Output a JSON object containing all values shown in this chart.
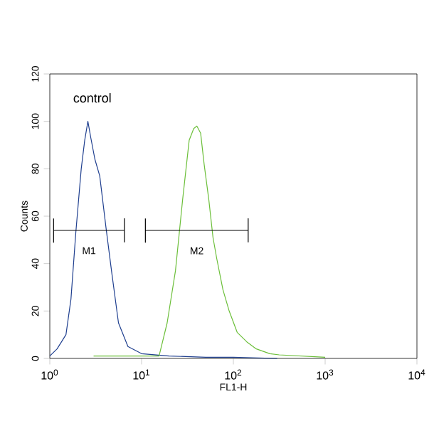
{
  "chart_data": {
    "type": "line",
    "xlabel": "FL1-H",
    "ylabel": "Counts",
    "log": "x",
    "xlim": [
      1,
      10000
    ],
    "ylim": [
      0,
      120
    ],
    "xticks": [
      {
        "value": 1,
        "label": "10$^{0}$"
      },
      {
        "value": 10,
        "label": "10$^{1}$"
      },
      {
        "value": 100,
        "label": "10$^{2}$"
      },
      {
        "value": 1000,
        "label": "10$^{3}$"
      },
      {
        "value": 10000,
        "label": "10$^{4}$"
      }
    ],
    "yticks": [
      0,
      20,
      40,
      60,
      80,
      100,
      120
    ],
    "grid": false,
    "marker": "none",
    "line_style": "solid",
    "series": [
      {
        "color": "#1f3f8f",
        "x": [
          1,
          1.2,
          1.5,
          1.7,
          1.92,
          2.2,
          2.4,
          2.6,
          2.8,
          3.1,
          3.5,
          4.1,
          4.7,
          5.6,
          7.1,
          10,
          20,
          50,
          100,
          300
        ],
        "values": [
          1,
          4,
          10,
          25,
          53,
          80,
          92,
          100,
          93,
          84,
          77,
          55,
          37,
          15,
          5,
          2,
          1,
          0.5,
          0.5,
          0
        ]
      },
      {
        "color": "#6cbf3a",
        "x": [
          3,
          8,
          15.5,
          19,
          23.4,
          28,
          33,
          37,
          40,
          44,
          48,
          54,
          60,
          66,
          77,
          90,
          110,
          140,
          178,
          250,
          316,
          1000
        ],
        "values": [
          1,
          1,
          1,
          15,
          37,
          67,
          92,
          97,
          98,
          95,
          82,
          67,
          51,
          42,
          29,
          20,
          11,
          7,
          4,
          2,
          1.5,
          0.5
        ]
      },
      {
        "color": "#000000",
        "x": [
          1.1,
          1.1,
          1.1,
          6.5,
          6.5,
          6.5
        ],
        "values": [
          59,
          49,
          54,
          54,
          59,
          49
        ]
      },
      {
        "color": "#000000",
        "x": [
          11,
          11,
          11,
          145,
          145,
          145
        ],
        "values": [
          59,
          49,
          54,
          54,
          59,
          49
        ]
      }
    ],
    "annotations": [
      "control",
      "M1",
      "M2"
    ]
  }
}
